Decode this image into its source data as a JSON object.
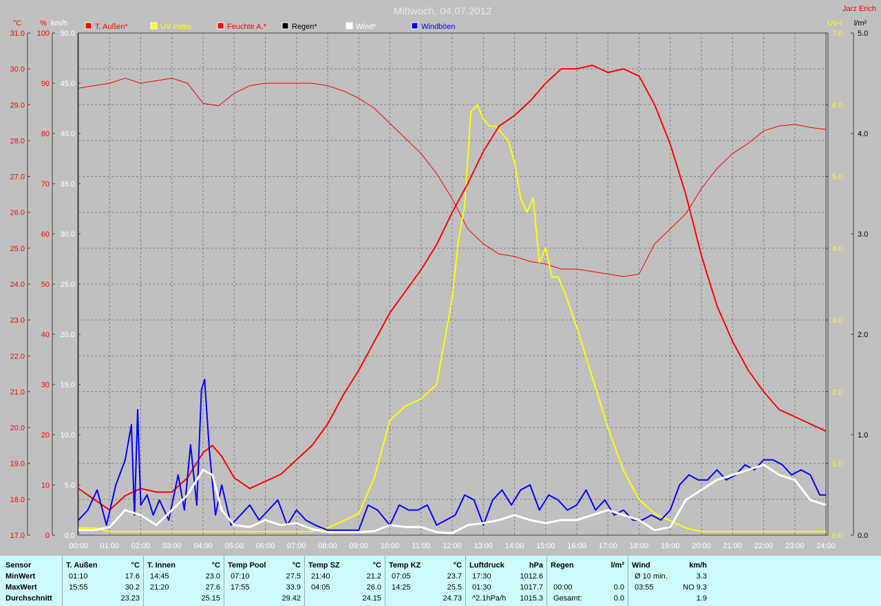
{
  "title": "Mittwoch, 04.07.2012",
  "author": "Jarz Erich",
  "units_left": [
    "°C",
    "%",
    "km/h"
  ],
  "units_right": [
    "UV-I",
    "l/m²"
  ],
  "legend": [
    {
      "label": "T. Außen*",
      "color": "#ff0000"
    },
    {
      "label": "UV Index",
      "color": "#ffff00"
    },
    {
      "label": "Feuchte A.*",
      "color": "#ff0000"
    },
    {
      "label": "Regen*",
      "color": "#000000"
    },
    {
      "label": "Wind*",
      "color": "#ffffff"
    },
    {
      "label": "Windböen",
      "color": "#0000ff"
    }
  ],
  "colors": {
    "bg": "#c0c0c0",
    "temp": "#ff0000",
    "uv": "#ffff00",
    "wind": "#ffffff",
    "gust": "#0000ff",
    "stats_bg": "#cdfbfb",
    "title": "#e6e6e6"
  },
  "chart_data": {
    "type": "line",
    "grid": true,
    "x_ticks": [
      "00:00",
      "01:00",
      "02:00",
      "03:00",
      "04:00",
      "05:00",
      "06:00",
      "07:00",
      "08:00",
      "09:00",
      "10:00",
      "11:00",
      "12:00",
      "13:00",
      "14:00",
      "15:00",
      "16:00",
      "17:00",
      "18:00",
      "19:00",
      "20:00",
      "21:00",
      "22:00",
      "23:00",
      "24:00"
    ],
    "axes": {
      "temp": {
        "range": [
          17,
          31
        ],
        "ticks": [
          "17.0",
          "18.0",
          "19.0",
          "20.0",
          "21.0",
          "22.0",
          "23.0",
          "24.0",
          "25.0",
          "26.0",
          "27.0",
          "28.0",
          "29.0",
          "30.0",
          "31.0"
        ]
      },
      "humidity": {
        "range": [
          0,
          100
        ],
        "ticks": [
          "0",
          "10",
          "20",
          "30",
          "40",
          "50",
          "60",
          "70",
          "80",
          "90",
          "100"
        ]
      },
      "wind": {
        "range": [
          0,
          50
        ],
        "ticks": [
          "0.0",
          "5.0",
          "10.0",
          "15.0",
          "20.0",
          "25.0",
          "30.0",
          "35.0",
          "40.0",
          "45.0",
          "50.0"
        ]
      },
      "uv": {
        "range": [
          0,
          7
        ],
        "ticks": [
          "0.0",
          "1.0",
          "2.0",
          "3.0",
          "4.0",
          "5.0",
          "6.0",
          "7.0"
        ]
      },
      "rain": {
        "range": [
          0,
          5
        ],
        "ticks": [
          "0.0",
          "1.0",
          "2.0",
          "3.0",
          "4.0",
          "5.0"
        ]
      }
    },
    "series": [
      {
        "name": "T. Außen*",
        "axis": "temp",
        "width": 2,
        "x": [
          0,
          0.5,
          1,
          1.5,
          2,
          2.5,
          3,
          3.5,
          4,
          4.3,
          4.6,
          5,
          5.5,
          6,
          6.5,
          7,
          7.5,
          8,
          8.5,
          9,
          9.5,
          10,
          10.5,
          11,
          11.5,
          12,
          12.5,
          13,
          13.5,
          14,
          14.5,
          15,
          15.5,
          16,
          16.5,
          17,
          17.5,
          18,
          18.5,
          19,
          19.5,
          20,
          20.5,
          21,
          21.5,
          22,
          22.5,
          23,
          23.5,
          24
        ],
        "y": [
          18.3,
          18.0,
          17.7,
          18.1,
          18.3,
          18.2,
          18.2,
          18.6,
          19.3,
          19.5,
          19.2,
          18.6,
          18.3,
          18.5,
          18.7,
          19.1,
          19.5,
          20.1,
          20.9,
          21.6,
          22.4,
          23.2,
          23.8,
          24.4,
          25.1,
          26.0,
          26.8,
          27.7,
          28.4,
          28.7,
          29.1,
          29.6,
          30.0,
          30.0,
          30.1,
          29.9,
          30.0,
          29.8,
          29.0,
          27.9,
          26.5,
          24.8,
          23.4,
          22.4,
          21.6,
          21.0,
          20.5,
          20.3,
          20.1,
          19.9
        ]
      },
      {
        "name": "Feuchte A.*",
        "axis": "humidity",
        "width": 1,
        "x": [
          0,
          0.5,
          1,
          1.5,
          2,
          2.5,
          3,
          3.5,
          4,
          4.5,
          5,
          5.5,
          6,
          6.5,
          7,
          7.5,
          8,
          8.5,
          9,
          9.5,
          10,
          10.5,
          11,
          11.5,
          12,
          12.5,
          13,
          13.5,
          14,
          14.5,
          15,
          15.5,
          16,
          16.5,
          17,
          17.5,
          18,
          18.5,
          19,
          19.5,
          20,
          20.5,
          21,
          21.5,
          22,
          22.5,
          23,
          23.5,
          24
        ],
        "y": [
          89,
          89.5,
          90,
          91,
          90,
          90.5,
          91,
          90,
          86,
          85.5,
          88,
          89.5,
          90,
          90,
          90,
          90,
          89.5,
          88.5,
          87,
          85,
          82,
          79,
          76,
          72,
          67,
          61,
          58,
          56,
          55.5,
          54.5,
          54,
          53,
          53,
          52.5,
          52,
          51.5,
          52,
          58,
          61,
          64,
          69,
          73,
          76,
          78,
          80.5,
          81.5,
          81.8,
          81.2,
          80.8
        ]
      },
      {
        "name": "UV Index",
        "axis": "uv",
        "width": 2,
        "x": [
          0,
          0.5,
          1,
          1.5,
          2,
          2.5,
          3,
          3.5,
          4,
          4.5,
          5,
          5.5,
          6,
          6.5,
          7,
          7.5,
          8,
          8.5,
          9,
          9.5,
          10,
          10.5,
          11,
          11.5,
          12,
          12.2,
          12.4,
          12.6,
          12.8,
          13,
          13.2,
          13.4,
          13.6,
          13.8,
          14,
          14.2,
          14.4,
          14.6,
          14.8,
          15,
          15.2,
          15.4,
          15.6,
          16,
          16.5,
          17,
          17.5,
          18,
          18.5,
          19,
          19.5,
          20,
          20.5,
          21,
          21.5,
          22,
          22.5,
          23,
          23.5,
          24
        ],
        "y": [
          0.1,
          0.1,
          0.05,
          0.05,
          0.05,
          0.05,
          0.05,
          0.05,
          0.05,
          0.05,
          0.05,
          0.05,
          0.05,
          0.05,
          0.05,
          0.05,
          0.1,
          0.2,
          0.3,
          0.8,
          1.6,
          1.8,
          1.9,
          2.1,
          3.3,
          4.1,
          4.6,
          5.9,
          6.0,
          5.8,
          5.7,
          5.7,
          5.6,
          5.5,
          5.2,
          4.7,
          4.5,
          4.7,
          3.8,
          4.0,
          3.6,
          3.6,
          3.4,
          2.9,
          2.2,
          1.5,
          0.9,
          0.5,
          0.3,
          0.2,
          0.1,
          0.05,
          0.05,
          0.05,
          0.05,
          0.05,
          0.05,
          0.05,
          0.05,
          0.05
        ]
      },
      {
        "name": "Wind*",
        "axis": "wind",
        "width": 3,
        "x": [
          0,
          0.5,
          1,
          1.5,
          2,
          2.5,
          3,
          3.5,
          4,
          4.3,
          4.6,
          5,
          5.5,
          6,
          6.5,
          7,
          7.5,
          8,
          8.5,
          9,
          9.5,
          10,
          10.5,
          11,
          11.5,
          12,
          12.5,
          13,
          13.5,
          14,
          14.5,
          15,
          15.5,
          16,
          16.5,
          17,
          17.5,
          18,
          18.5,
          19,
          19.5,
          20,
          20.5,
          21,
          21.5,
          22,
          22.5,
          23,
          23.5,
          24
        ],
        "y": [
          0.5,
          0.5,
          0.8,
          2.5,
          2.0,
          1.0,
          2.5,
          4.0,
          6.5,
          6.0,
          2.5,
          1.0,
          0.8,
          1.5,
          1.0,
          1.2,
          0.6,
          0.3,
          0.3,
          0.3,
          0.4,
          1.0,
          0.8,
          0.8,
          0.3,
          0.2,
          1.0,
          1.2,
          1.5,
          2.0,
          1.5,
          1.2,
          1.5,
          1.5,
          2.0,
          2.5,
          2.0,
          1.5,
          0.5,
          0.8,
          3.5,
          4.5,
          5.5,
          6.0,
          6.5,
          7.0,
          6.0,
          5.5,
          3.5,
          3.0
        ]
      },
      {
        "name": "Windböen",
        "axis": "wind",
        "width": 2,
        "x": [
          0,
          0.3,
          0.6,
          0.9,
          1.2,
          1.5,
          1.7,
          1.8,
          1.9,
          2.0,
          2.2,
          2.4,
          2.6,
          2.9,
          3.2,
          3.4,
          3.6,
          3.8,
          3.95,
          4.05,
          4.2,
          4.4,
          4.6,
          4.9,
          5.2,
          5.5,
          5.8,
          6.1,
          6.4,
          6.7,
          7.0,
          7.3,
          7.6,
          8.0,
          8.5,
          9.0,
          9.3,
          9.6,
          10.0,
          10.3,
          10.6,
          10.9,
          11.2,
          11.5,
          11.8,
          12.1,
          12.4,
          12.7,
          13.0,
          13.3,
          13.6,
          13.9,
          14.2,
          14.5,
          14.8,
          15.1,
          15.4,
          15.7,
          16.0,
          16.3,
          16.6,
          16.9,
          17.2,
          17.5,
          17.8,
          18.1,
          18.4,
          18.7,
          19.0,
          19.3,
          19.6,
          19.9,
          20.2,
          20.5,
          20.8,
          21.1,
          21.4,
          21.7,
          22.0,
          22.3,
          22.6,
          22.9,
          23.2,
          23.5,
          23.8,
          24.0
        ],
        "y": [
          1.5,
          2.5,
          4.5,
          1.0,
          5.0,
          7.5,
          11.0,
          2.0,
          12.5,
          3.0,
          4.0,
          2.0,
          3.5,
          1.5,
          6.0,
          2.5,
          9.0,
          3.0,
          14.5,
          15.5,
          8.5,
          2.0,
          5.0,
          1.0,
          2.0,
          3.0,
          1.5,
          2.5,
          3.5,
          1.0,
          2.5,
          1.5,
          1.0,
          0.5,
          0.5,
          0.5,
          3.0,
          2.5,
          1.0,
          3.0,
          2.5,
          2.5,
          3.0,
          1.0,
          1.5,
          2.0,
          4.0,
          3.5,
          1.0,
          3.5,
          4.5,
          3.0,
          4.5,
          5.0,
          2.5,
          4.0,
          3.5,
          2.5,
          3.0,
          4.5,
          2.5,
          3.5,
          2.0,
          2.5,
          1.5,
          1.5,
          2.0,
          1.5,
          2.5,
          5.0,
          6.0,
          5.5,
          5.5,
          6.5,
          5.5,
          6.0,
          7.0,
          6.5,
          7.5,
          7.5,
          7.0,
          6.0,
          6.5,
          6.0,
          4.0,
          4.0
        ]
      }
    ]
  },
  "stats": {
    "row_labels": {
      "sensor": "Sensor",
      "min": "MinWert",
      "max": "MaxWert",
      "avg": "Durchschnitt"
    },
    "sections": [
      {
        "name": "T. Außen",
        "unit": "°C",
        "min_time": "01:10",
        "min_val": "17.6",
        "max_time": "15:55",
        "max_val": "30.2",
        "avg_label": "",
        "avg": "23.23"
      },
      {
        "name": "T. Innen",
        "unit": "°C",
        "min_time": "14:45",
        "min_val": "23.0",
        "max_time": "21:20",
        "max_val": "27.6",
        "avg_label": "",
        "avg": "25.15"
      },
      {
        "name": "Temp Pool",
        "unit": "°C",
        "min_time": "07:10",
        "min_val": "27.5",
        "max_time": "17:55",
        "max_val": "33.9",
        "avg_label": "",
        "avg": "29.42"
      },
      {
        "name": "Temp SZ",
        "unit": "°C",
        "min_time": "21:40",
        "min_val": "21.2",
        "max_time": "04:05",
        "max_val": "26.0",
        "avg_label": "",
        "avg": "24.15"
      },
      {
        "name": "Temp KZ",
        "unit": "°C",
        "min_time": "07:05",
        "min_val": "23.7",
        "max_time": "14:25",
        "max_val": "25.5",
        "avg_label": "",
        "avg": "24.73"
      },
      {
        "name": "Luftdruck",
        "unit": "hPa",
        "min_time": "17:30",
        "min_val": "1012.6",
        "max_time": "01:30",
        "max_val": "1017.7",
        "avg_label": "^2.1hPa/h",
        "avg": "1015.3"
      },
      {
        "name": "Regen",
        "unit": "l/m²",
        "min_time": "",
        "min_val": "",
        "max_time": "00:00",
        "max_val": "0.0",
        "avg_label": "Gesamt:",
        "avg": "0.0"
      },
      {
        "name": "Wind",
        "unit": "km/h",
        "min_time": "Ø 10 min.",
        "min_val": "3.3",
        "max_time": "03:55",
        "max_val": "NO 9.3",
        "avg_label": "",
        "avg": "1.9"
      }
    ]
  }
}
